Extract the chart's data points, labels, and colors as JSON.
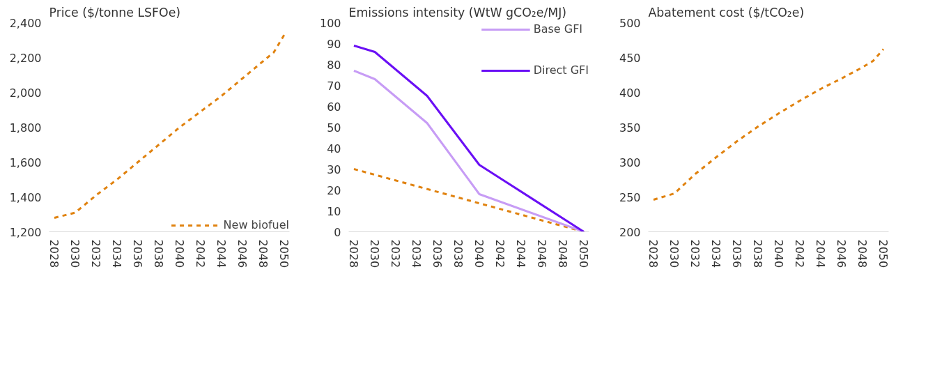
{
  "chart_data": [
    {
      "type": "line",
      "ylabel": "Price ($/tonne LSFOe)",
      "xlim": [
        2027.5,
        2050.5
      ],
      "xticks": [
        2028,
        2030,
        2032,
        2034,
        2036,
        2038,
        2040,
        2042,
        2044,
        2046,
        2048,
        2050
      ],
      "ylim": [
        1200,
        2400
      ],
      "yticks": [
        {
          "value": 1200,
          "label": "1,200"
        },
        {
          "value": 1400,
          "label": "1,400"
        },
        {
          "value": 1600,
          "label": "1,600"
        },
        {
          "value": 1800,
          "label": "1,800"
        },
        {
          "value": 2000,
          "label": "2,000"
        },
        {
          "value": 2200,
          "label": "2,200"
        },
        {
          "value": 2400,
          "label": "2,400"
        }
      ],
      "grid": false,
      "legend": "bottom right",
      "series": [
        {
          "name": "New biofuel",
          "color": "#e0820f",
          "line_style": "dashed",
          "x": [
            2028,
            2030,
            2032,
            2034,
            2036,
            2038,
            2040,
            2042,
            2044,
            2046,
            2048,
            2049,
            2050
          ],
          "values": [
            1280,
            1310,
            1410,
            1500,
            1600,
            1700,
            1800,
            1890,
            1980,
            2080,
            2180,
            2230,
            2330
          ]
        }
      ]
    },
    {
      "type": "line",
      "ylabel": "Emissions intensity (WtW gCO₂e/MJ)",
      "xlim": [
        2027.5,
        2050.5
      ],
      "xticks": [
        2028,
        2030,
        2032,
        2034,
        2036,
        2038,
        2040,
        2042,
        2044,
        2046,
        2048,
        2050
      ],
      "ylim": [
        0,
        100
      ],
      "yticks": [
        0,
        10,
        20,
        30,
        40,
        50,
        60,
        70,
        80,
        90,
        100
      ],
      "grid": false,
      "legend": "top right",
      "series": [
        {
          "color": "#e0820f",
          "line_style": "dashed",
          "x": [
            2028,
            2050
          ],
          "values": [
            30,
            0
          ]
        },
        {
          "name": "Base GFI",
          "color": "#c79cf5",
          "line_style": "solid",
          "x": [
            2028,
            2030,
            2035,
            2040,
            2050
          ],
          "values": [
            77,
            73,
            52,
            18,
            0
          ]
        },
        {
          "name": "Direct GFI",
          "color": "#6a0ff5",
          "line_style": "solid",
          "x": [
            2028,
            2030,
            2035,
            2040,
            2050
          ],
          "values": [
            89,
            86,
            65,
            32,
            0
          ]
        }
      ]
    },
    {
      "type": "line",
      "ylabel": "Abatement cost ($/tCO₂e)",
      "xlim": [
        2027.5,
        2050.5
      ],
      "xticks": [
        2028,
        2030,
        2032,
        2034,
        2036,
        2038,
        2040,
        2042,
        2044,
        2046,
        2048,
        2050
      ],
      "ylim": [
        200,
        500
      ],
      "yticks": [
        200,
        250,
        300,
        350,
        400,
        450,
        500
      ],
      "grid": false,
      "series": [
        {
          "color": "#e0820f",
          "line_style": "dashed",
          "x": [
            2028,
            2030,
            2032,
            2034,
            2036,
            2038,
            2040,
            2042,
            2044,
            2046,
            2048,
            2049,
            2050
          ],
          "values": [
            246,
            255,
            283,
            307,
            330,
            351,
            370,
            388,
            405,
            420,
            436,
            445,
            462
          ]
        }
      ]
    }
  ]
}
